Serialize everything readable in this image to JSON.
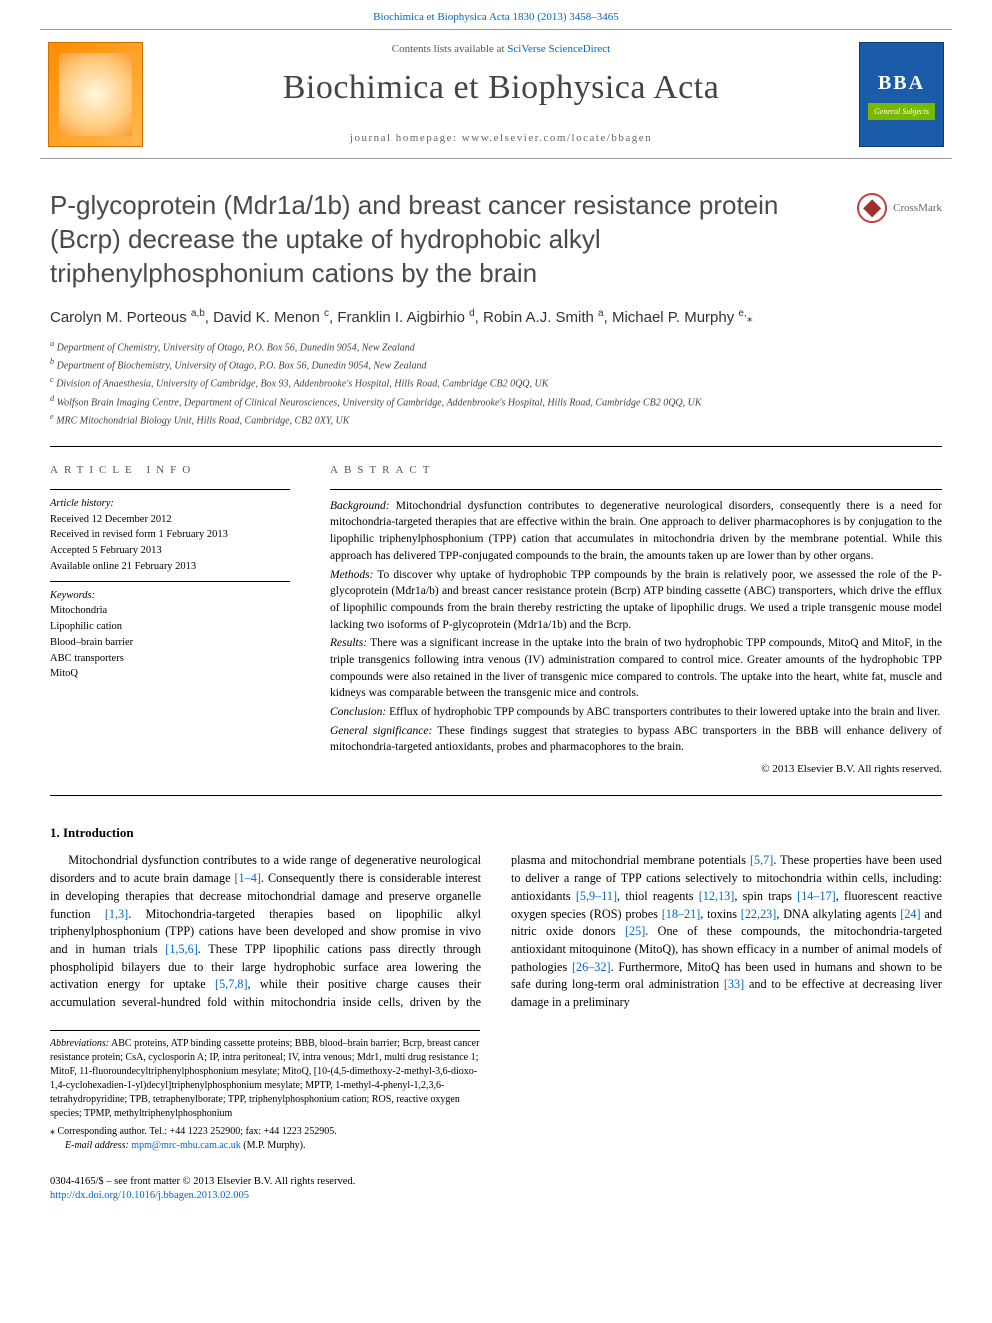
{
  "top_link": {
    "journal": "Biochimica et Biophysica Acta",
    "citation": "1830 (2013) 3458–3465"
  },
  "header": {
    "contents_prefix": "Contents lists available at",
    "contents_link": "SciVerse ScienceDirect",
    "journal_title": "Biochimica et Biophysica Acta",
    "homepage_label": "journal homepage: www.elsevier.com/locate/bbagen",
    "bba_top": "BBA",
    "bba_sub": "General Subjects"
  },
  "crossmark": {
    "label": "CrossMark"
  },
  "title": "P-glycoprotein (Mdr1a/1b) and breast cancer resistance protein (Bcrp) decrease the uptake of hydrophobic alkyl triphenylphosphonium cations by the brain",
  "authors_html": "Carolyn M. Porteous <sup>a,b</sup>, David K. Menon <sup>c</sup>, Franklin I. Aigbirhio <sup>d</sup>, Robin A.J. Smith <sup>a</sup>, Michael P. Murphy <sup>e,</sup><span class='star'>⁎</span>",
  "affiliations": [
    "a Department of Chemistry, University of Otago, P.O. Box 56, Dunedin 9054, New Zealand",
    "b Department of Biochemistry, University of Otago, P.O. Box 56, Dunedin 9054, New Zealand",
    "c Division of Anaesthesia, University of Cambridge, Box 93, Addenbrooke's Hospital, Hills Road, Cambridge CB2 0QQ, UK",
    "d Wolfson Brain Imaging Centre, Department of Clinical Neurosciences, University of Cambridge, Addenbrooke's Hospital, Hills Road, Cambridge CB2 0QQ, UK",
    "e MRC Mitochondrial Biology Unit, Hills Road, Cambridge, CB2 0XY, UK"
  ],
  "article_info": {
    "heading": "ARTICLE INFO",
    "history_hdr": "Article history:",
    "history": [
      "Received 12 December 2012",
      "Received in revised form 1 February 2013",
      "Accepted 5 February 2013",
      "Available online 21 February 2013"
    ],
    "keywords_hdr": "Keywords:",
    "keywords": [
      "Mitochondria",
      "Lipophilic cation",
      "Blood–brain barrier",
      "ABC transporters",
      "MitoQ"
    ]
  },
  "abstract": {
    "heading": "ABSTRACT",
    "parts": [
      {
        "label": "Background:",
        "text": " Mitochondrial dysfunction contributes to degenerative neurological disorders, consequently there is a need for mitochondria-targeted therapies that are effective within the brain. One approach to deliver pharmacophores is by conjugation to the lipophilic triphenylphosphonium (TPP) cation that accumulates in mitochondria driven by the membrane potential. While this approach has delivered TPP-conjugated compounds to the brain, the amounts taken up are lower than by other organs."
      },
      {
        "label": "Methods:",
        "text": " To discover why uptake of hydrophobic TPP compounds by the brain is relatively poor, we assessed the role of the P-glycoprotein (Mdr1a/b) and breast cancer resistance protein (Bcrp) ATP binding cassette (ABC) transporters, which drive the efflux of lipophilic compounds from the brain thereby restricting the uptake of lipophilic drugs. We used a triple transgenic mouse model lacking two isoforms of P-glycoprotein (Mdr1a/1b) and the Bcrp."
      },
      {
        "label": "Results:",
        "text": " There was a significant increase in the uptake into the brain of two hydrophobic TPP compounds, MitoQ and MitoF, in the triple transgenics following intra venous (IV) administration compared to control mice. Greater amounts of the hydrophobic TPP compounds were also retained in the liver of transgenic mice compared to controls. The uptake into the heart, white fat, muscle and kidneys was comparable between the transgenic mice and controls."
      },
      {
        "label": "Conclusion:",
        "text": " Efflux of hydrophobic TPP compounds by ABC transporters contributes to their lowered uptake into the brain and liver."
      },
      {
        "label": "General significance:",
        "text": " These findings suggest that strategies to bypass ABC transporters in the BBB will enhance delivery of mitochondria-targeted antioxidants, probes and pharmacophores to the brain."
      }
    ],
    "copyright": "© 2013 Elsevier B.V. All rights reserved."
  },
  "intro": {
    "heading": "1. Introduction",
    "para1_pre": "Mitochondrial dysfunction contributes to a wide range of degenerative neurological disorders and to acute brain damage ",
    "para1_link1": "[1–4]",
    "para1_mid": ". Consequently there is considerable interest in developing therapies that decrease mitochondrial damage and preserve organelle function ",
    "para1_link2": "[1,3]",
    "para1_post": ". Mitochondria-targeted therapies based on lipophilic alkyl",
    "para2_pre": "triphenylphosphonium (TPP) cations have been developed and show promise in vivo and in human trials ",
    "para2_l1": "[1,5,6]",
    "para2_t1": ". These TPP lipophilic cations pass directly through phospholipid bilayers due to their large hydrophobic surface area lowering the activation energy for uptake ",
    "para2_l2": "[5,7,8]",
    "para2_t2": ", while their positive charge causes their accumulation several-hundred fold within mitochondria inside cells, driven by the plasma and mitochondrial membrane potentials ",
    "para2_l3": "[5,7]",
    "para2_t3": ". These properties have been used to deliver a range of TPP cations selectively to mitochondria within cells, including: antioxidants ",
    "para2_l4": "[5,9–11]",
    "para2_t4": ", thiol reagents ",
    "para2_l5": "[12,13]",
    "para2_t5": ", spin traps ",
    "para2_l6": "[14–17]",
    "para2_t6": ", fluorescent reactive oxygen species (ROS) probes ",
    "para2_l7": "[18–21]",
    "para2_t7": ", toxins ",
    "para2_l8": "[22,23]",
    "para2_t8": ", DNA alkylating agents ",
    "para2_l9": "[24]",
    "para2_t9": " and nitric oxide donors ",
    "para2_l10": "[25]",
    "para2_t10": ". One of these compounds, the mitochondria-targeted antioxidant mitoquinone (MitoQ), has shown efficacy in a number of animal models of pathologies ",
    "para2_l11": "[26–32]",
    "para2_t11": ". Furthermore, MitoQ has been used in humans and shown to be safe during long-term oral administration ",
    "para2_l12": "[33]",
    "para2_t12": " and to be effective at decreasing liver damage in a preliminary"
  },
  "footnotes": {
    "abbr_label": "Abbreviations:",
    "abbr_text": " ABC proteins, ATP binding cassette proteins; BBB, blood–brain barrier; Bcrp, breast cancer resistance protein; CsA, cyclosporin A; IP, intra peritoneal; IV, intra venous; Mdr1, multi drug resistance 1; MitoF, 11-fluoroundecyltriphenylphosphonium mesylate; MitoQ, [10-(4,5-dimethoxy-2-methyl-3,6-dioxo-1,4-cyclohexadien-1-yl)decyl]triphenylphosphonium mesylate; MPTP, 1-methyl-4-phenyl-1,2,3,6-tetrahydropyridine; TPB, tetraphenylborate; TPP, triphenylphosphonium cation; ROS, reactive oxygen species; TPMP, methyltriphenylphosphonium",
    "corr_label": "⁎ Corresponding author. Tel.: +44 1223 252900; fax: +44 1223 252905.",
    "email_label": "E-mail address:",
    "email": "mpm@mrc-mbu.cam.ac.uk",
    "email_suffix": " (M.P. Murphy)."
  },
  "bottom": {
    "line1": "0304-4165/$ – see front matter © 2013 Elsevier B.V. All rights reserved.",
    "doi": "http://dx.doi.org/10.1016/j.bbagen.2013.02.005"
  },
  "colors": {
    "link": "#0066cc",
    "text": "#000000",
    "title_gray": "#4a4a4a",
    "elsevier_orange": "#ff8c00",
    "bba_blue": "#1a5ca8",
    "bba_green": "#7ab800"
  },
  "typography": {
    "body_pt": 13,
    "title_pt": 26,
    "journal_pt": 34,
    "abstract_pt": 11.5,
    "footnote_pt": 10
  }
}
